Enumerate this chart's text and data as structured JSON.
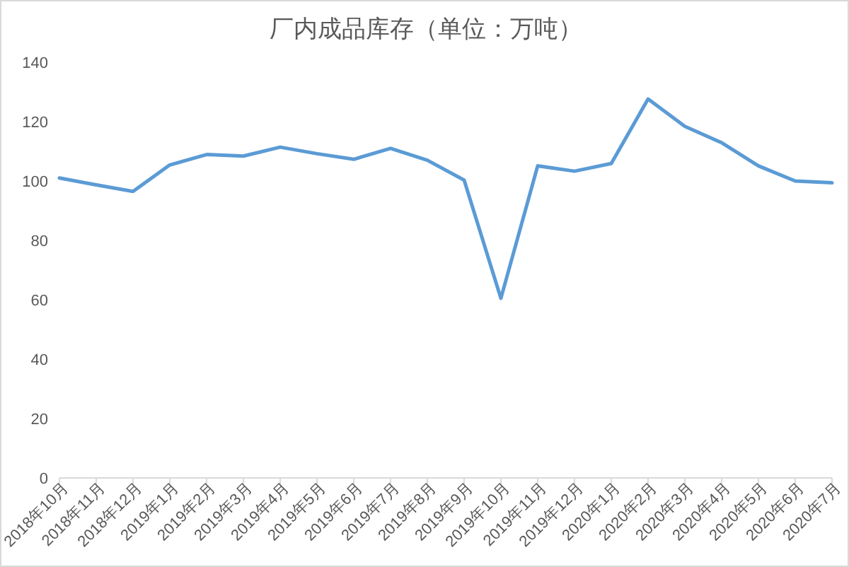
{
  "chart_data": {
    "type": "line",
    "title": "厂内成品库存（单位：万吨）",
    "categories": [
      "2018年10月",
      "2018年11月",
      "2018年12月",
      "2019年1月",
      "2019年2月",
      "2019年3月",
      "2019年4月",
      "2019年5月",
      "2019年6月",
      "2019年7月",
      "2019年8月",
      "2019年9月",
      "2019年10月",
      "2019年11月",
      "2019年12月",
      "2020年1月",
      "2020年2月",
      "2020年3月",
      "2020年4月",
      "2020年5月",
      "2020年6月",
      "2020年7月"
    ],
    "series": [
      {
        "color": "#5b9bd5",
        "values": [
          101.0,
          98.7,
          96.5,
          105.4,
          108.9,
          108.4,
          111.4,
          109.2,
          107.3,
          111.0,
          107.0,
          100.3,
          60.5,
          105.1,
          103.3,
          105.9,
          127.6,
          118.4,
          112.9,
          105.1,
          100.0,
          99.4
        ]
      }
    ],
    "ylim": [
      0,
      140
    ],
    "yticks": [
      0,
      20,
      40,
      60,
      80,
      100,
      120,
      140
    ]
  }
}
